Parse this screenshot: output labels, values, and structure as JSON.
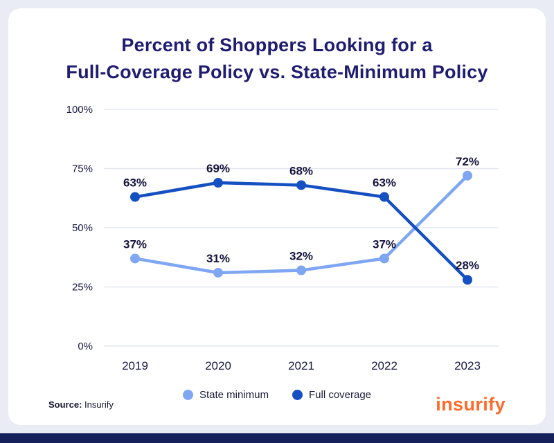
{
  "card": {
    "title_line1": "Percent of Shoppers Looking for a",
    "title_line2": "Full-Coverage Policy vs. State-Minimum Policy"
  },
  "chart_data": {
    "type": "line",
    "title": "Percent of Shoppers Looking for a Full-Coverage Policy vs. State-Minimum Policy",
    "categories": [
      "2019",
      "2020",
      "2021",
      "2022",
      "2023"
    ],
    "series": [
      {
        "name": "State minimum",
        "values": [
          37,
          31,
          32,
          37,
          72
        ],
        "color": "#7ea6f3"
      },
      {
        "name": "Full coverage",
        "values": [
          63,
          69,
          68,
          63,
          28
        ],
        "color": "#1550c2"
      }
    ],
    "y_ticks": [
      0,
      25,
      50,
      75,
      100
    ],
    "y_tick_labels": [
      "0%",
      "25%",
      "50%",
      "75%",
      "100%"
    ],
    "ylim": [
      0,
      100
    ],
    "data_label_suffix": "%",
    "grid": true,
    "legend_position": "bottom"
  },
  "footer": {
    "source_label": "Source:",
    "source_value": " Insurify",
    "brand": "insurify"
  },
  "colors": {
    "state_minimum": "#7ea6f3",
    "full_coverage": "#1550c2",
    "title_navy": "#1f1d70",
    "brand_orange": "#ff6a2a",
    "page_background": "#e9ebf5",
    "bottom_bar_navy": "#16215c",
    "gridline": "#e4e7f1"
  }
}
